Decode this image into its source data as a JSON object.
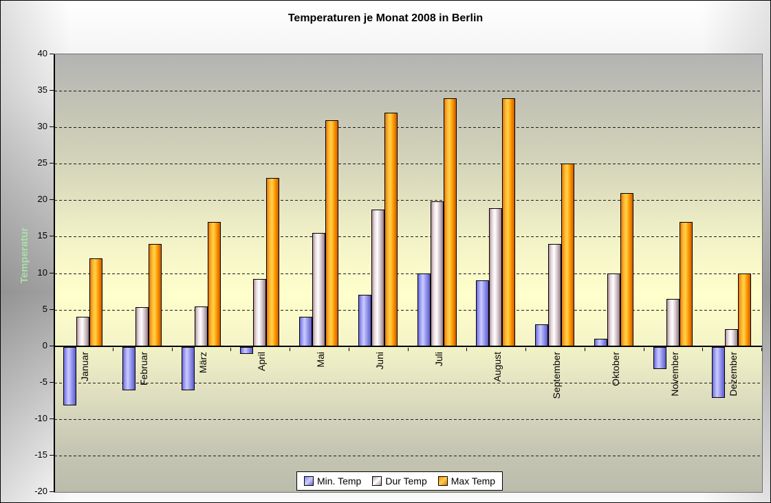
{
  "title": "Temperaturen je Monat 2008 in Berlin",
  "y_axis": {
    "label": "Temperatur",
    "label_color": "#a8e0a8",
    "min": -20,
    "max": 40,
    "step": 5
  },
  "legend": {
    "items": [
      "Min. Temp",
      "Dur Temp",
      "Max Temp"
    ]
  },
  "chart_data": {
    "type": "bar",
    "title": "Temperaturen je Monat 2008 in Berlin",
    "xlabel": "",
    "ylabel": "Temperatur",
    "ylim": [
      -20,
      40
    ],
    "y_ticks": [
      40,
      35,
      30,
      25,
      20,
      15,
      10,
      5,
      0,
      -5,
      -10,
      -15,
      -20
    ],
    "grid": true,
    "legend_position": "bottom-center",
    "categories": [
      "Januar",
      "Februar",
      "März",
      "April",
      "Mai",
      "Juni",
      "Juli",
      "August",
      "September",
      "Oktober",
      "November",
      "Dezember"
    ],
    "series": [
      {
        "name": "Min. Temp",
        "color": "#9999ff",
        "values": [
          -8,
          -6,
          -6,
          -1,
          4,
          7,
          10,
          9,
          3,
          1,
          -3,
          -7
        ]
      },
      {
        "name": "Dur Temp",
        "color": "#ffffff",
        "values": [
          4,
          5.3,
          5.4,
          9.2,
          15.5,
          18.7,
          19.8,
          18.9,
          14,
          10,
          6.5,
          2.3
        ]
      },
      {
        "name": "Max Temp",
        "color": "#ff9900",
        "values": [
          12,
          14,
          17,
          23,
          31,
          32,
          34,
          34,
          25,
          21,
          17,
          10
        ]
      }
    ]
  }
}
